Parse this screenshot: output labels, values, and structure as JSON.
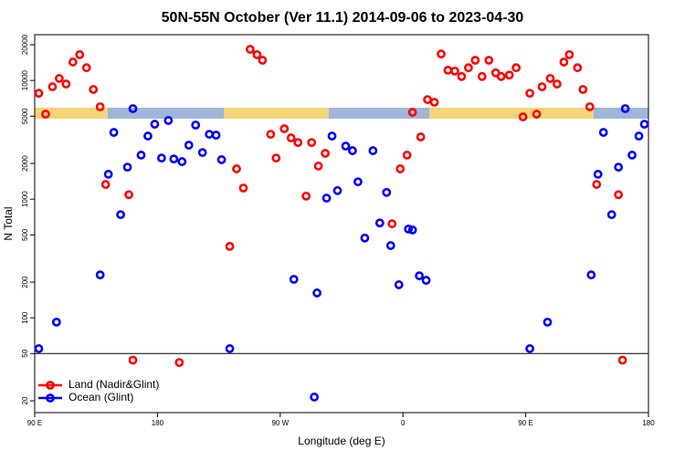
{
  "chart_data": {
    "type": "scatter",
    "title": "50N-55N October (Ver 11.1)   2014-09-06 to 2023-04-30",
    "x_label": "Longitude (deg E)",
    "y_label": "N Total",
    "y_scale": "log",
    "legend_position": "lower left",
    "reference_line": 50,
    "xlim": [
      90,
      540
    ],
    "ylim": [
      15.9,
      24300
    ],
    "xticks": [
      {
        "value": 90,
        "label": "90 E"
      },
      180,
      {
        "value": 270,
        "label": "90 W"
      },
      {
        "value": 360,
        "label": "0"
      },
      {
        "value": 450,
        "label": "90 E"
      },
      {
        "value": 540,
        "label": "180"
      }
    ],
    "yticks": [
      20,
      50,
      100,
      200,
      500,
      1000,
      2000,
      5000,
      10000,
      20000
    ],
    "series": [
      {
        "name": "Land (Nadir&Glint)",
        "color": "#ff0000",
        "x": [
          93,
          98,
          103,
          108,
          113,
          118,
          123,
          128,
          133,
          138,
          142,
          159,
          162,
          196,
          233,
          238,
          243,
          248,
          253,
          257,
          263,
          267,
          273,
          278,
          283,
          289,
          293,
          298,
          303,
          352,
          358,
          363,
          367,
          373,
          378,
          383,
          388,
          393,
          398,
          403,
          408,
          413,
          418,
          423,
          428,
          432,
          438,
          443,
          448,
          453,
          458,
          462,
          468,
          473,
          478,
          482,
          488,
          492,
          497,
          502,
          518,
          521
        ],
        "values": [
          7800,
          5200,
          8850,
          10400,
          9330,
          14300,
          16500,
          12800,
          8400,
          6000,
          1330,
          1090,
          44,
          42,
          400,
          1800,
          1240,
          18300,
          16500,
          14800,
          3520,
          2220,
          3920,
          3280,
          3000,
          1060,
          3000,
          1900,
          2430,
          620,
          1800,
          2350,
          5390,
          3340,
          6900,
          6550,
          16700,
          12200,
          12000,
          10800,
          12800,
          14800,
          10800,
          14800,
          11600,
          10800,
          11100,
          12800,
          4930,
          7800,
          5200,
          8850,
          10400,
          9330,
          14300,
          16500,
          12800,
          8400,
          6000,
          1330,
          1090,
          44
        ]
      },
      {
        "name": "Ocean (Glint)",
        "color": "#0000ff",
        "x": [
          93,
          106,
          138,
          144,
          148,
          153,
          158,
          162,
          168,
          173,
          178,
          183,
          188,
          192,
          198,
          203,
          208,
          213,
          218,
          223,
          227,
          233,
          280,
          295,
          297,
          304,
          308,
          312,
          318,
          323,
          327,
          332,
          338,
          343,
          348,
          351,
          357,
          364,
          367,
          372,
          377,
          453,
          466,
          498,
          503,
          507,
          513,
          518,
          523,
          528,
          533,
          537
        ],
        "values": [
          55,
          92,
          230,
          1620,
          3650,
          740,
          1860,
          5790,
          2350,
          3400,
          4280,
          2220,
          4600,
          2180,
          2070,
          2850,
          4210,
          2470,
          3520,
          3460,
          2150,
          55,
          211,
          21.5,
          162,
          1020,
          3400,
          1180,
          2800,
          2560,
          1400,
          470,
          2560,
          630,
          1140,
          406,
          190,
          560,
          550,
          226,
          207,
          55,
          92,
          230,
          1620,
          3650,
          740,
          1860,
          5790,
          2350,
          3400,
          4280
        ]
      }
    ]
  }
}
